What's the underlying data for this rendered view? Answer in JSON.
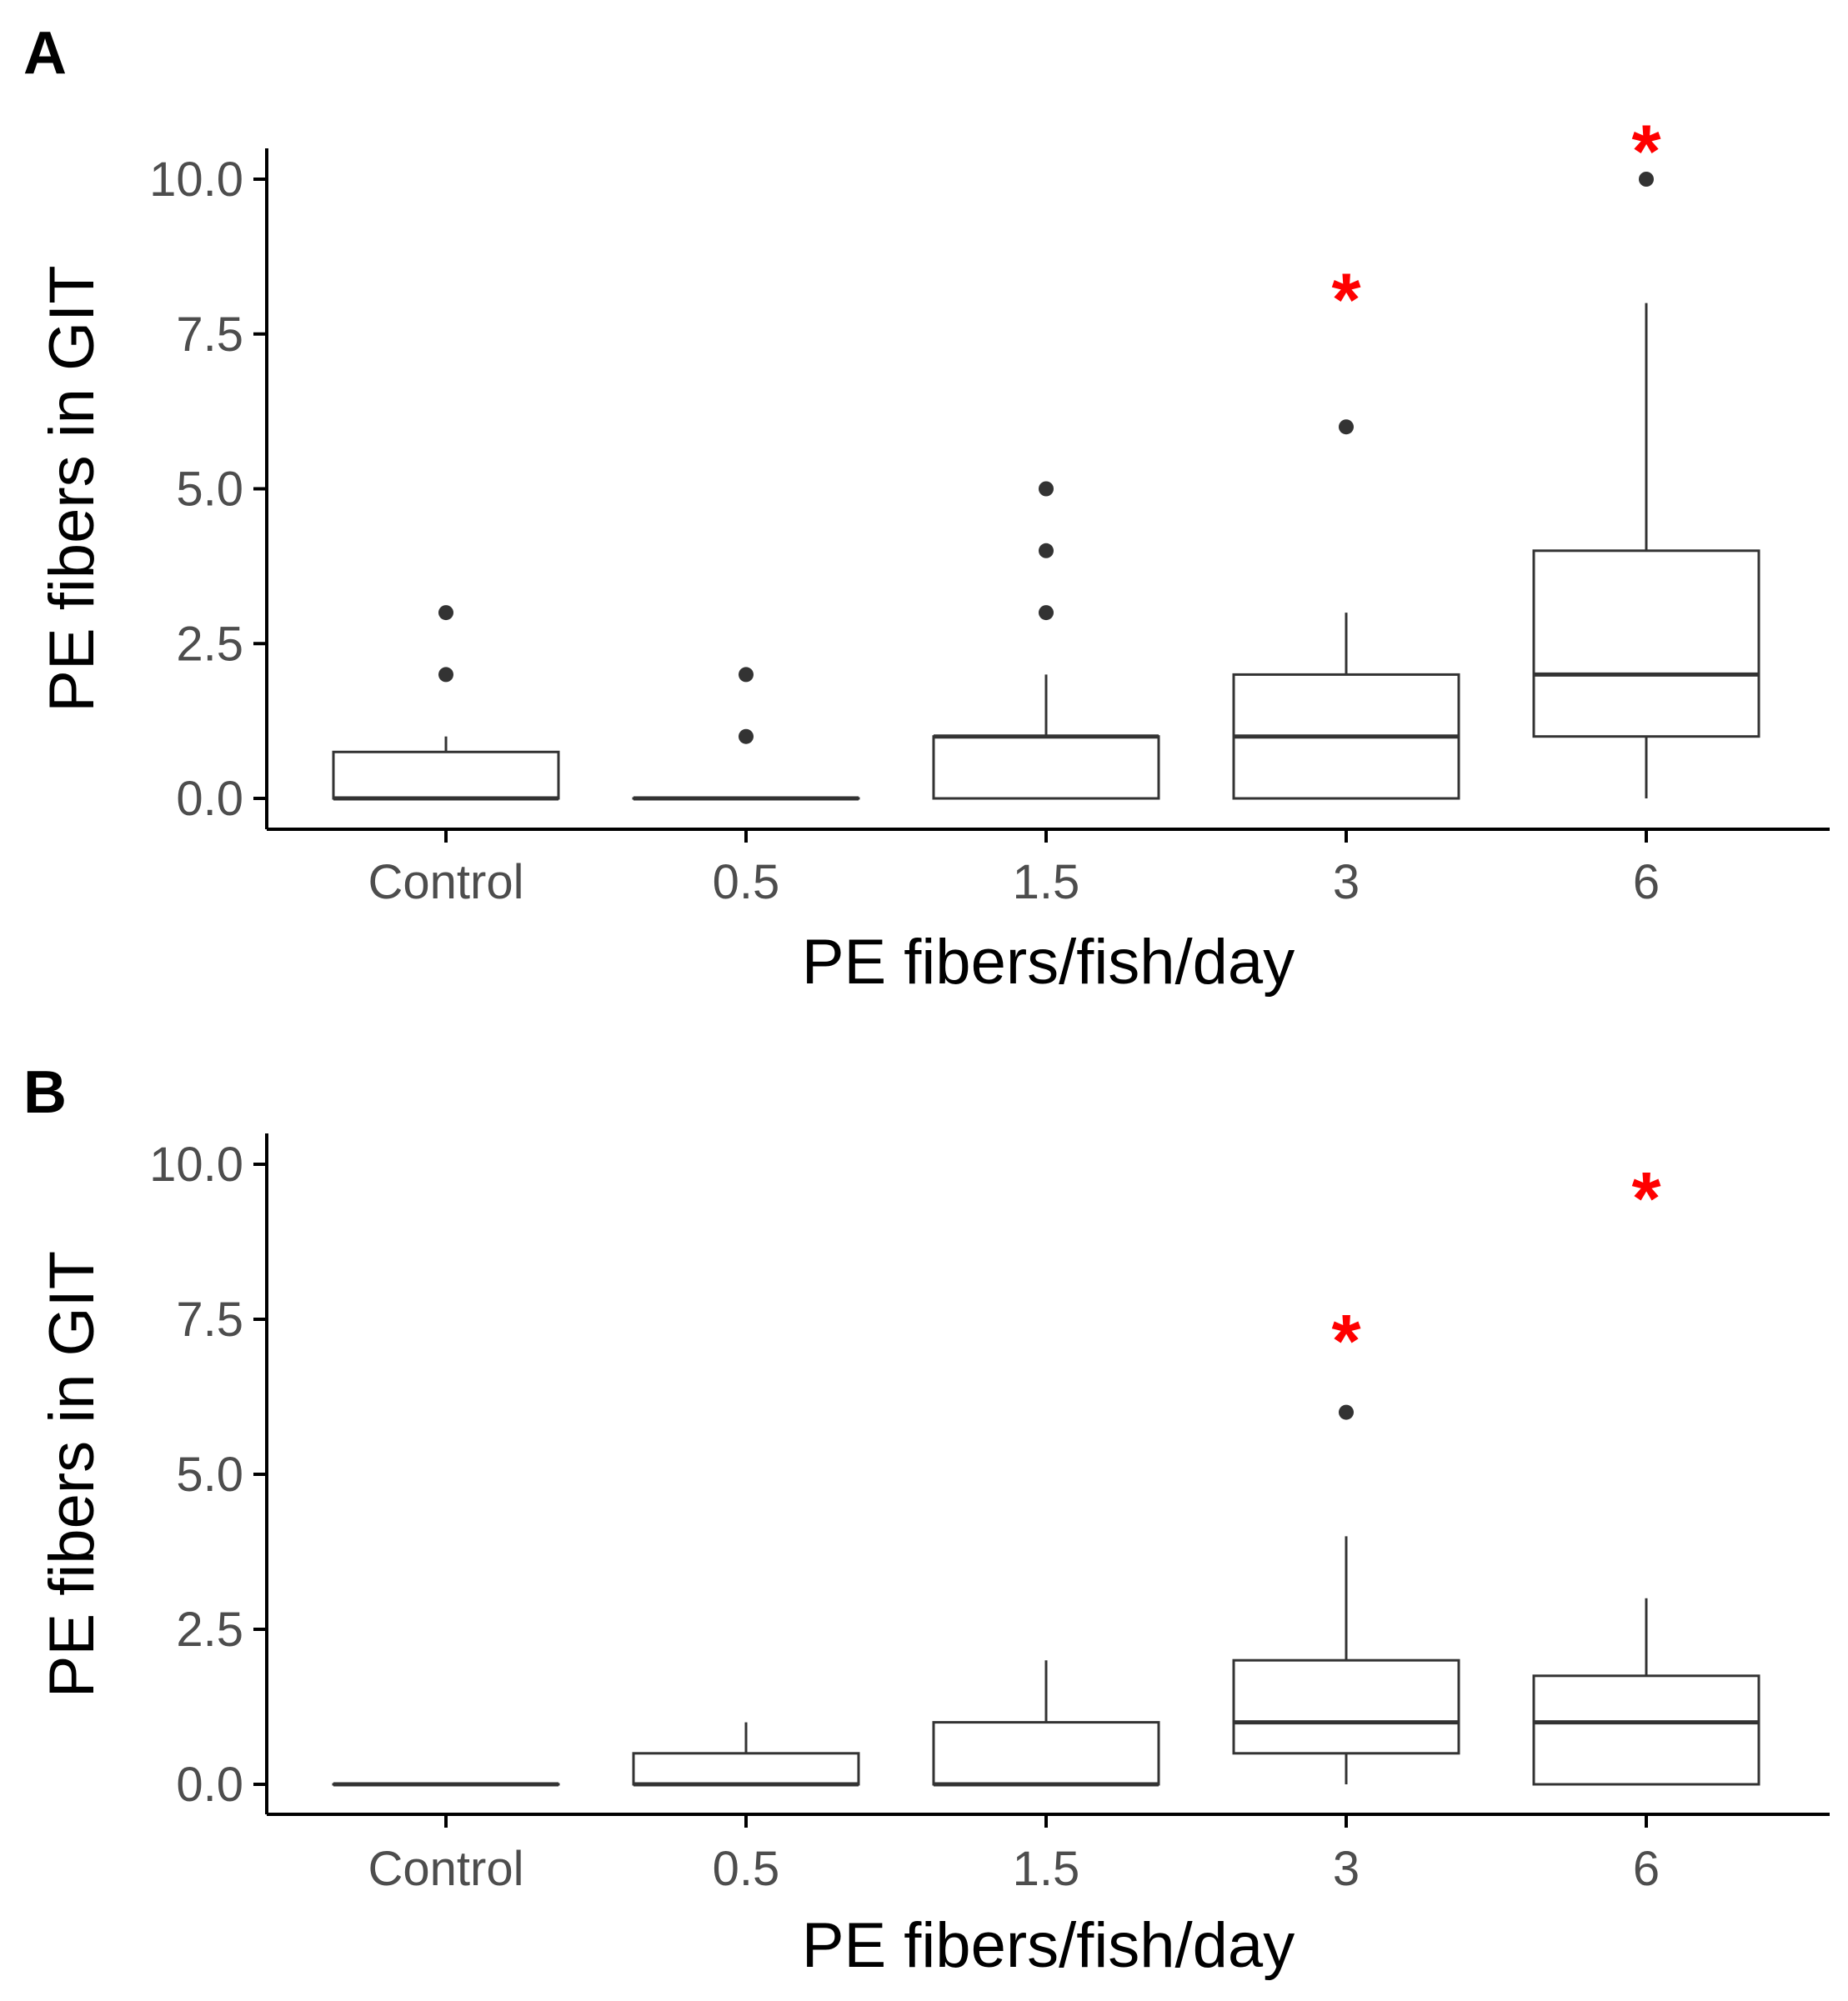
{
  "chart_data": [
    {
      "panel": "A",
      "type": "box",
      "xlabel": "PE fibers/fish/day",
      "ylabel": "PE fibers in GIT",
      "ylim": [
        0,
        10
      ],
      "yticks": [
        "0.0",
        "2.5",
        "5.0",
        "7.5",
        "10.0"
      ],
      "ytick_values": [
        0,
        2.5,
        5,
        7.5,
        10
      ],
      "categories": [
        "Control",
        "0.5",
        "1.5",
        "3",
        "6"
      ],
      "boxes": [
        {
          "q1": 0,
          "median": 0,
          "q3": 0.75,
          "whisker_low": 0,
          "whisker_high": 1,
          "outliers": [
            2,
            3
          ],
          "significant": false,
          "sig_mark": "",
          "sig_y": null
        },
        {
          "q1": 0,
          "median": 0,
          "q3": 0,
          "whisker_low": 0,
          "whisker_high": 0,
          "outliers": [
            1,
            2
          ],
          "significant": false,
          "sig_mark": "",
          "sig_y": null
        },
        {
          "q1": 0,
          "median": 1,
          "q3": 1,
          "whisker_low": 0,
          "whisker_high": 2,
          "outliers": [
            3,
            4,
            5
          ],
          "significant": false,
          "sig_mark": "",
          "sig_y": null
        },
        {
          "q1": 0,
          "median": 1,
          "q3": 2,
          "whisker_low": 0,
          "whisker_high": 3,
          "outliers": [
            6
          ],
          "significant": true,
          "sig_mark": "*",
          "sig_y": 8.2
        },
        {
          "q1": 1,
          "median": 2,
          "q3": 4,
          "whisker_low": 0,
          "whisker_high": 8,
          "outliers": [
            10
          ],
          "significant": true,
          "sig_mark": "*",
          "sig_y": 10.6
        }
      ]
    },
    {
      "panel": "B",
      "type": "box",
      "xlabel": "PE fibers/fish/day",
      "ylabel": "PE fibers in GIT",
      "ylim": [
        0,
        10
      ],
      "yticks": [
        "0.0",
        "2.5",
        "5.0",
        "7.5",
        "10.0"
      ],
      "ytick_values": [
        0,
        2.5,
        5,
        7.5,
        10
      ],
      "categories": [
        "Control",
        "0.5",
        "1.5",
        "3",
        "6"
      ],
      "boxes": [
        {
          "q1": 0,
          "median": 0,
          "q3": 0,
          "whisker_low": 0,
          "whisker_high": 0,
          "outliers": [],
          "significant": false,
          "sig_mark": "",
          "sig_y": null
        },
        {
          "q1": 0,
          "median": 0,
          "q3": 0.5,
          "whisker_low": 0,
          "whisker_high": 1,
          "outliers": [],
          "significant": false,
          "sig_mark": "",
          "sig_y": null
        },
        {
          "q1": 0,
          "median": 0,
          "q3": 1,
          "whisker_low": 0,
          "whisker_high": 2,
          "outliers": [],
          "significant": false,
          "sig_mark": "",
          "sig_y": null
        },
        {
          "q1": 0.5,
          "median": 1,
          "q3": 2,
          "whisker_low": 0,
          "whisker_high": 4,
          "outliers": [
            6
          ],
          "significant": true,
          "sig_mark": "*",
          "sig_y": 7.3
        },
        {
          "q1": 0,
          "median": 1,
          "q3": 1.75,
          "whisker_low": 0,
          "whisker_high": 3,
          "outliers": [],
          "significant": true,
          "sig_mark": "*",
          "sig_y": 9.6
        }
      ]
    }
  ]
}
